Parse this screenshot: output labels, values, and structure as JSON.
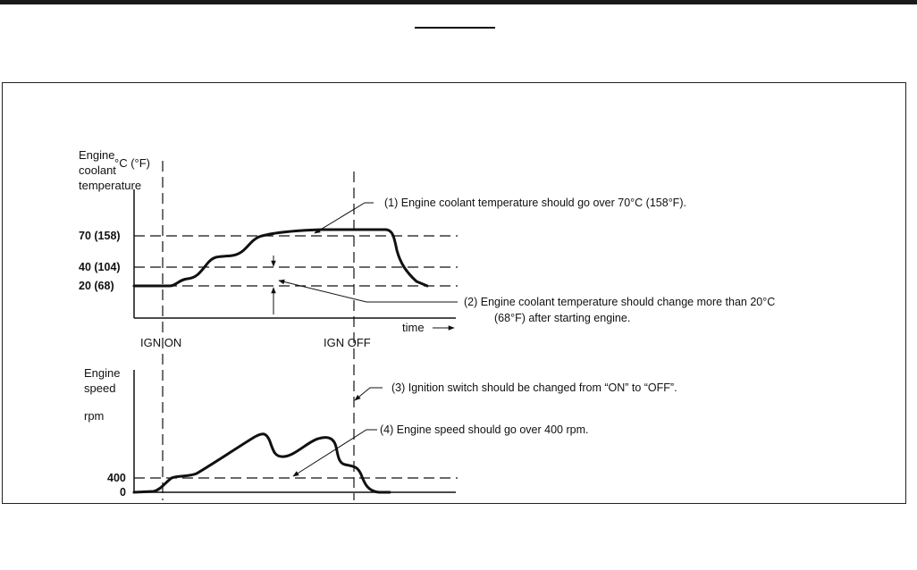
{
  "upper": {
    "axis_label": [
      "Engine",
      "coolant",
      "temperature"
    ],
    "unit": "°C (°F)",
    "ticks": [
      "70 (158)",
      "40 (104)",
      "20 (68)"
    ],
    "time_label": "time",
    "ign_on": "IGN ON",
    "ign_off": "IGN OFF"
  },
  "lower": {
    "axis_label": [
      "Engine",
      "speed"
    ],
    "unit": "rpm",
    "ticks": [
      "400",
      "0"
    ]
  },
  "notes": {
    "n1": "(1)   Engine coolant temperature should go over 70°C (158°F).",
    "n2_line1": "(2)   Engine coolant temperature should change more than 20°C",
    "n2_line2": "(68°F) after starting engine.",
    "n3": "(3)   Ignition switch should be changed from “ON” to “OFF”.",
    "n4": "(4)   Engine speed should go over 400 rpm."
  },
  "colors": {
    "ink": "#111111",
    "rule": "#1a1a1a"
  }
}
